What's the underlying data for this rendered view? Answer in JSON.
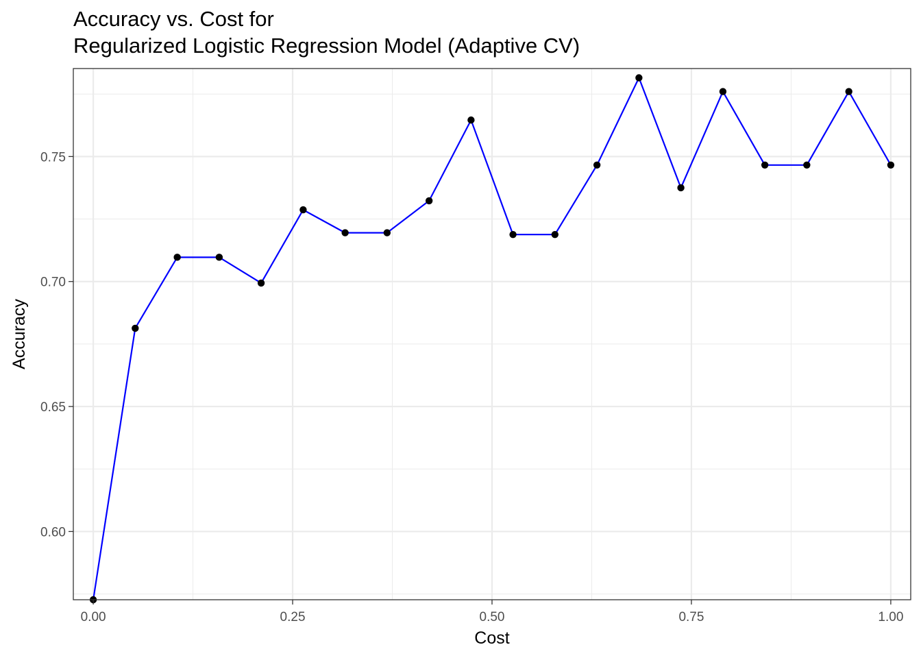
{
  "chart_data": {
    "type": "line",
    "title": [
      "Accuracy vs. Cost for",
      "Regularized Logistic Regression Model (Adaptive CV)"
    ],
    "xlabel": "Cost",
    "ylabel": "Accuracy",
    "xlim": [
      -0.025,
      1.025
    ],
    "ylim": [
      0.5727,
      0.7852
    ],
    "x_ticks": [
      0.0,
      0.25,
      0.5,
      0.75,
      1.0
    ],
    "x_tick_labels": [
      "0.00",
      "0.25",
      "0.50",
      "0.75",
      "1.00"
    ],
    "y_ticks": [
      0.6,
      0.65,
      0.7,
      0.75
    ],
    "y_tick_labels": [
      "0.60",
      "0.65",
      "0.70",
      "0.75"
    ],
    "grid": true,
    "line_color": "#0000ff",
    "point_color": "#000000",
    "series": [
      {
        "x": [
          0.0,
          0.0526,
          0.1053,
          0.1579,
          0.2105,
          0.2632,
          0.3158,
          0.3684,
          0.4211,
          0.4737,
          0.5263,
          0.5789,
          0.6316,
          0.6842,
          0.7368,
          0.7895,
          0.8421,
          0.8947,
          0.9474,
          1.0
        ],
        "y": [
          0.5727,
          0.6813,
          0.7097,
          0.7097,
          0.6994,
          0.7287,
          0.7195,
          0.7195,
          0.7323,
          0.7646,
          0.7188,
          0.7188,
          0.7466,
          0.7815,
          0.7375,
          0.776,
          0.7466,
          0.7466,
          0.776,
          0.7466
        ]
      }
    ]
  }
}
